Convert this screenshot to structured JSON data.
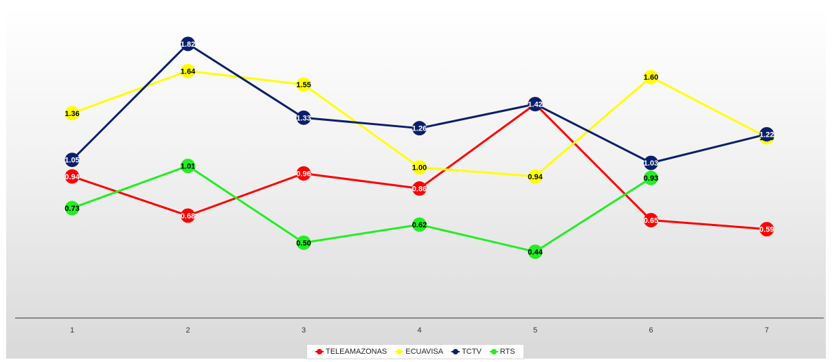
{
  "chart_data": {
    "type": "line",
    "x": [
      "1",
      "2",
      "3",
      "4",
      "5",
      "6",
      "7"
    ],
    "ylim": [
      0,
      2
    ],
    "grid": false,
    "legend_position": "bottom",
    "series": [
      {
        "name": "TELEAMAZONAS",
        "color": "#ff0000",
        "label_color": "#ffffff",
        "values": [
          0.94,
          0.68,
          0.96,
          0.86,
          1.42,
          0.65,
          0.59
        ],
        "labels": [
          "0.94",
          "0.68",
          "0.96",
          "0.86",
          "1.42",
          "0.65",
          "0.59"
        ]
      },
      {
        "name": "ECUAVISA",
        "color": "#ffff00",
        "label_color": "#000000",
        "values": [
          1.36,
          1.64,
          1.55,
          1.0,
          0.94,
          1.6,
          1.2
        ],
        "labels": [
          "1.36",
          "1.64",
          "1.55",
          "1.00",
          "0.94",
          "1.60",
          "1.20"
        ]
      },
      {
        "name": "TCTV",
        "color": "#0a1f6b",
        "label_color": "#ffffff",
        "values": [
          1.05,
          1.82,
          1.33,
          1.26,
          1.42,
          1.03,
          1.22
        ],
        "labels": [
          "1.05",
          "1.82",
          "1.33",
          "1.26",
          "1.42",
          "1.03",
          "1.22"
        ]
      },
      {
        "name": "RTS",
        "color": "#22ee22",
        "label_color": "#000000",
        "values": [
          0.73,
          1.01,
          0.5,
          0.62,
          0.44,
          0.93,
          null
        ],
        "labels": [
          "0.73",
          "1.01",
          "0.50",
          "0.62",
          "0.44",
          "0.93",
          null
        ]
      }
    ]
  }
}
